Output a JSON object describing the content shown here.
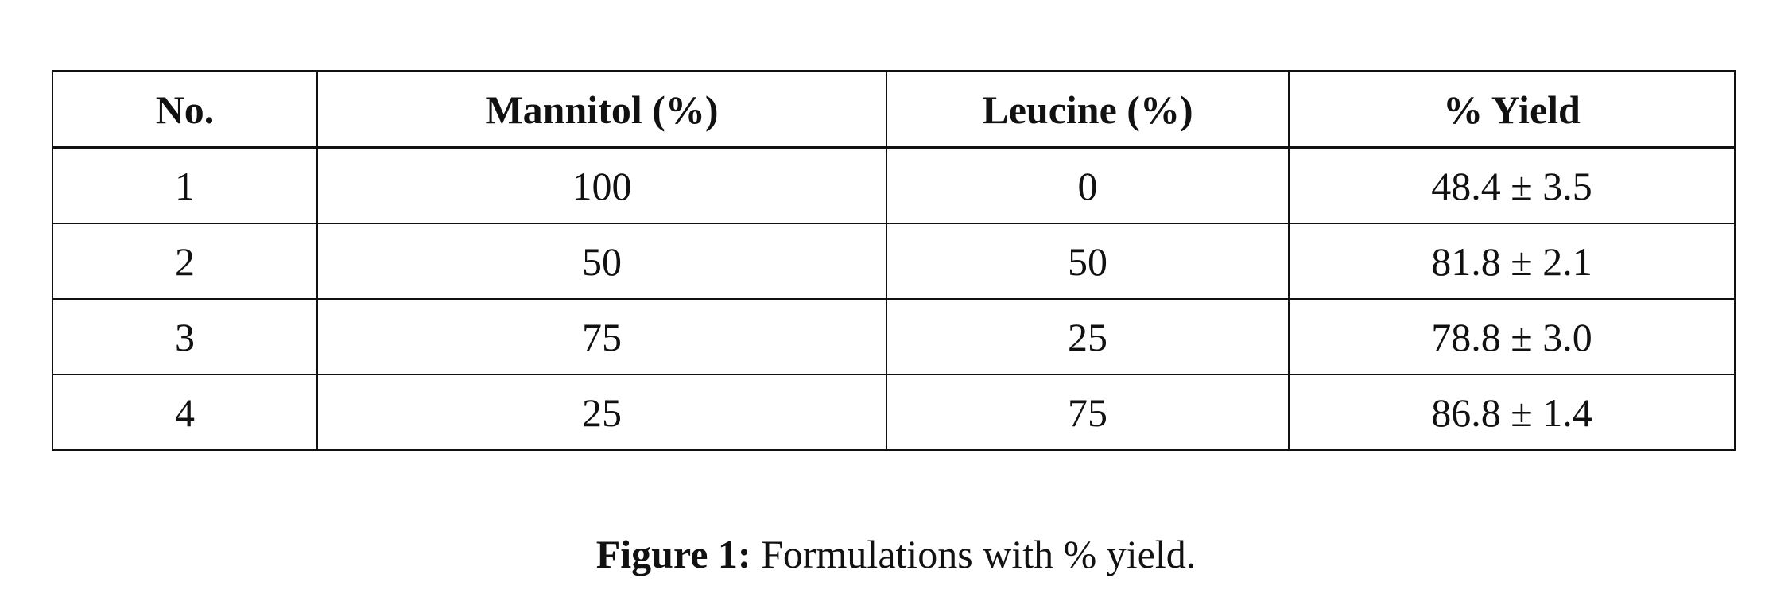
{
  "table": {
    "header": [
      "No.",
      "Mannitol (%)",
      "Leucine (%)",
      "% Yield"
    ],
    "rows": [
      [
        "1",
        "100",
        "0",
        "48.4 ± 3.5"
      ],
      [
        "2",
        "50",
        "50",
        "81.8 ± 2.1"
      ],
      [
        "3",
        "75",
        "25",
        "78.8 ± 3.0"
      ],
      [
        "4",
        "25",
        "75",
        "86.8 ± 1.4"
      ]
    ]
  },
  "caption": {
    "label": "Figure 1:",
    "text": "Formulations with % yield."
  }
}
